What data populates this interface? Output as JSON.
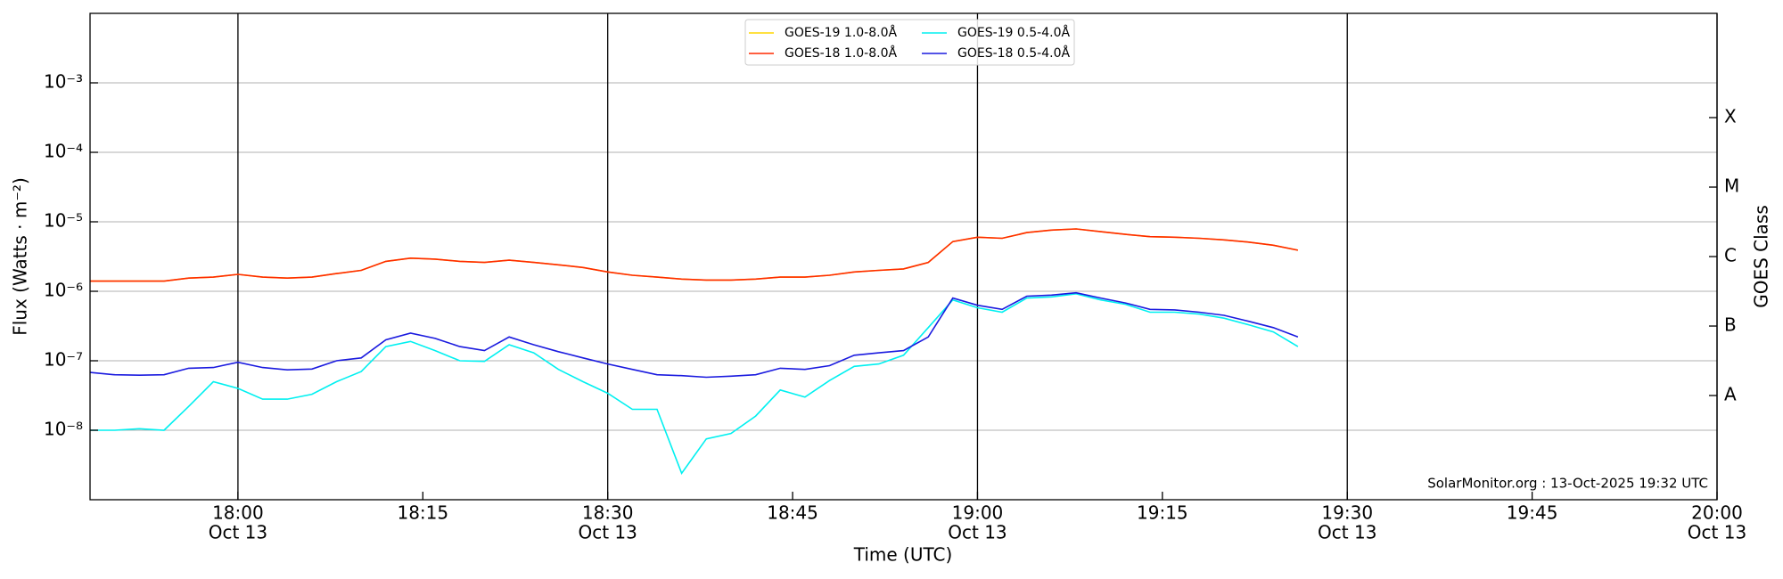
{
  "chart_data": {
    "type": "line",
    "xlabel": "Time (UTC)",
    "ylabel": "Flux (Watts · m⁻²)",
    "y2label": "GOES Class",
    "annotation": "SolarMonitor.org : 13-Oct-2025 19:32 UTC",
    "log_y": true,
    "grid": true,
    "legend": "upper center",
    "xlim": [
      "17:48",
      "20:00"
    ],
    "xticks": [
      {
        "value": "18:00",
        "label": [
          "18:00",
          "Oct 13"
        ]
      },
      "18:15",
      {
        "value": "18:30",
        "label": [
          "18:30",
          "Oct 13"
        ]
      },
      "18:45",
      {
        "value": "19:00",
        "label": [
          "19:00",
          "Oct 13"
        ]
      },
      "19:15",
      {
        "value": "19:30",
        "label": [
          "19:30",
          "Oct 13"
        ]
      },
      "19:45",
      {
        "value": "20:00",
        "label": [
          "20:00",
          "Oct 13"
        ]
      }
    ],
    "ylim": [
      1e-09,
      0.01
    ],
    "yticks": [
      {
        "value": 1e-08,
        "label": "10⁻⁸"
      },
      {
        "value": 1e-07,
        "label": "10⁻⁷"
      },
      {
        "value": 1e-06,
        "label": "10⁻⁶"
      },
      {
        "value": 1e-05,
        "label": "10⁻⁵"
      },
      {
        "value": 0.0001,
        "label": "10⁻⁴"
      },
      {
        "value": 0.001,
        "label": "10⁻³"
      }
    ],
    "y2lim": [
      1e-09,
      0.01
    ],
    "y2ticks": [
      {
        "value": 3.16e-08,
        "label": "A"
      },
      {
        "value": 3.16e-07,
        "label": "B"
      },
      {
        "value": 3.16e-06,
        "label": "C"
      },
      {
        "value": 3.16e-05,
        "label": "M"
      },
      {
        "value": 0.000316,
        "label": "X"
      }
    ],
    "x": [
      "17:48",
      "17:50",
      "17:52",
      "17:54",
      "17:56",
      "17:58",
      "18:00",
      "18:02",
      "18:04",
      "18:06",
      "18:08",
      "18:10",
      "18:12",
      "18:14",
      "18:16",
      "18:18",
      "18:20",
      "18:22",
      "18:24",
      "18:26",
      "18:28",
      "18:30",
      "18:32",
      "18:34",
      "18:36",
      "18:38",
      "18:40",
      "18:42",
      "18:44",
      "18:46",
      "18:48",
      "18:50",
      "18:52",
      "18:54",
      "18:56",
      "18:58",
      "19:00",
      "19:02",
      "19:04",
      "19:06",
      "19:08",
      "19:10",
      "19:12",
      "19:14",
      "19:16",
      "19:18",
      "19:20",
      "19:22",
      "19:24",
      "19:26"
    ],
    "series": [
      {
        "name": "GOES-19 1.0-8.0Å",
        "color": "#ffd700",
        "values": [
          1.4e-06,
          1.4e-06,
          1.4e-06,
          1.4e-06,
          1.55e-06,
          1.6e-06,
          1.75e-06,
          1.6e-06,
          1.55e-06,
          1.6e-06,
          1.8e-06,
          2e-06,
          2.7e-06,
          3e-06,
          2.9e-06,
          2.7e-06,
          2.6e-06,
          2.8e-06,
          2.6e-06,
          2.4e-06,
          2.2e-06,
          1.9e-06,
          1.7e-06,
          1.6e-06,
          1.5e-06,
          1.45e-06,
          1.45e-06,
          1.5e-06,
          1.6e-06,
          1.6e-06,
          1.7e-06,
          1.9e-06,
          2e-06,
          2.1e-06,
          2.6e-06,
          5.2e-06,
          6e-06,
          5.8e-06,
          7e-06,
          7.6e-06,
          7.9e-06,
          7.2e-06,
          6.6e-06,
          6.1e-06,
          6e-06,
          5.8e-06,
          5.5e-06,
          5.1e-06,
          4.6e-06,
          3.9e-06
        ]
      },
      {
        "name": "GOES-18 1.0-8.0Å",
        "color": "#ff2a00",
        "values": [
          1.4e-06,
          1.4e-06,
          1.4e-06,
          1.4e-06,
          1.55e-06,
          1.6e-06,
          1.75e-06,
          1.6e-06,
          1.55e-06,
          1.6e-06,
          1.8e-06,
          2e-06,
          2.7e-06,
          3e-06,
          2.9e-06,
          2.7e-06,
          2.6e-06,
          2.8e-06,
          2.6e-06,
          2.4e-06,
          2.2e-06,
          1.9e-06,
          1.7e-06,
          1.6e-06,
          1.5e-06,
          1.45e-06,
          1.45e-06,
          1.5e-06,
          1.6e-06,
          1.6e-06,
          1.7e-06,
          1.9e-06,
          2e-06,
          2.1e-06,
          2.6e-06,
          5.2e-06,
          6e-06,
          5.8e-06,
          7e-06,
          7.6e-06,
          7.9e-06,
          7.2e-06,
          6.6e-06,
          6.1e-06,
          6e-06,
          5.8e-06,
          5.5e-06,
          5.1e-06,
          4.6e-06,
          3.9e-06
        ]
      },
      {
        "name": "GOES-19 0.5-4.0Å",
        "color": "#00f0f0",
        "values": [
          1e-08,
          1e-08,
          1.05e-08,
          1e-08,
          2.2e-08,
          5e-08,
          4e-08,
          2.8e-08,
          2.8e-08,
          3.3e-08,
          5e-08,
          7e-08,
          1.6e-07,
          1.9e-07,
          1.4e-07,
          1e-07,
          9.8e-08,
          1.7e-07,
          1.3e-07,
          7.5e-08,
          5e-08,
          3.4e-08,
          2e-08,
          2e-08,
          2.4e-09,
          7.5e-09,
          9e-09,
          1.6e-08,
          3.8e-08,
          3e-08,
          5.2e-08,
          8.3e-08,
          9e-08,
          1.2e-07,
          3e-07,
          7.5e-07,
          5.8e-07,
          5e-07,
          8e-07,
          8.3e-07,
          9.2e-07,
          7.5e-07,
          6.5e-07,
          5e-07,
          5e-07,
          4.7e-07,
          4.1e-07,
          3.3e-07,
          2.6e-07,
          1.6e-07
        ]
      },
      {
        "name": "GOES-18 0.5-4.0Å",
        "color": "#1a1adf",
        "values": [
          6.8e-08,
          6.3e-08,
          6.2e-08,
          6.3e-08,
          7.8e-08,
          8e-08,
          9.5e-08,
          8e-08,
          7.4e-08,
          7.6e-08,
          1e-07,
          1.1e-07,
          2e-07,
          2.5e-07,
          2.1e-07,
          1.6e-07,
          1.4e-07,
          2.2e-07,
          1.7e-07,
          1.35e-07,
          1.1e-07,
          9e-08,
          7.5e-08,
          6.3e-08,
          6.1e-08,
          5.8e-08,
          6e-08,
          6.3e-08,
          7.8e-08,
          7.5e-08,
          8.5e-08,
          1.2e-07,
          1.3e-07,
          1.4e-07,
          2.2e-07,
          8e-07,
          6.3e-07,
          5.5e-07,
          8.5e-07,
          8.8e-07,
          9.5e-07,
          8e-07,
          6.8e-07,
          5.5e-07,
          5.4e-07,
          5e-07,
          4.5e-07,
          3.7e-07,
          3e-07,
          2.2e-07
        ]
      }
    ]
  }
}
